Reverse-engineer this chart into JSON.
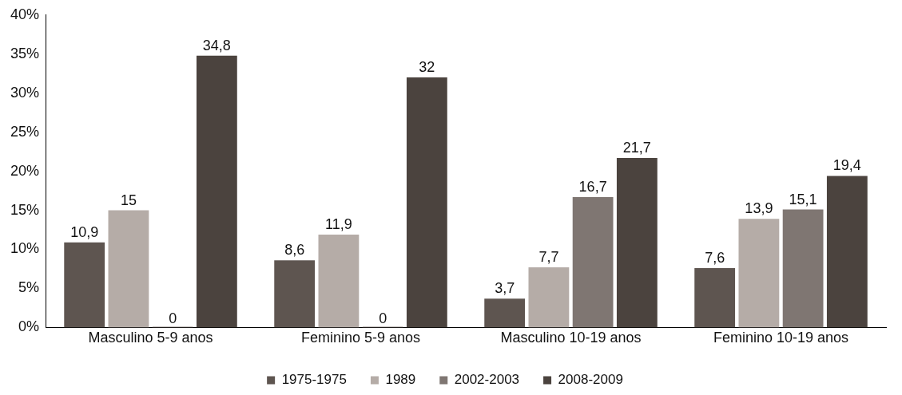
{
  "chart_data": {
    "type": "bar",
    "categories": [
      "Masculino 5-9 anos",
      "Feminino 5-9 anos",
      "Masculino 10-19 anos",
      "Feminino 10-19 anos"
    ],
    "series": [
      {
        "name": "1975-1975",
        "color": "#5e5550",
        "values": [
          10.9,
          8.6,
          3.7,
          7.6
        ],
        "value_labels": [
          "10,9",
          "8,6",
          "3,7",
          "7,6"
        ]
      },
      {
        "name": "1989",
        "color": "#b5aca7",
        "values": [
          15,
          11.9,
          7.7,
          13.9
        ],
        "value_labels": [
          "15",
          "11,9",
          "7,7",
          "13,9"
        ]
      },
      {
        "name": "2002-2003",
        "color": "#7f7672",
        "values": [
          0,
          0,
          16.7,
          15.1
        ],
        "value_labels": [
          "0",
          "0",
          "16,7",
          "15,1"
        ]
      },
      {
        "name": "2008-2009",
        "color": "#4b433e",
        "values": [
          34.8,
          32,
          21.7,
          19.4
        ],
        "value_labels": [
          "34,8",
          "32",
          "21,7",
          "19,4"
        ]
      }
    ],
    "ylim": [
      0,
      40
    ],
    "yticks": [
      {
        "value": 0,
        "label": "0%"
      },
      {
        "value": 5,
        "label": "5%"
      },
      {
        "value": 10,
        "label": "10%"
      },
      {
        "value": 15,
        "label": "15%"
      },
      {
        "value": 20,
        "label": "20%"
      },
      {
        "value": 25,
        "label": "25%"
      },
      {
        "value": 30,
        "label": "30%"
      },
      {
        "value": 35,
        "label": "35%"
      },
      {
        "value": 40,
        "label": "40%"
      }
    ],
    "grid": false,
    "legend": "bottom"
  }
}
